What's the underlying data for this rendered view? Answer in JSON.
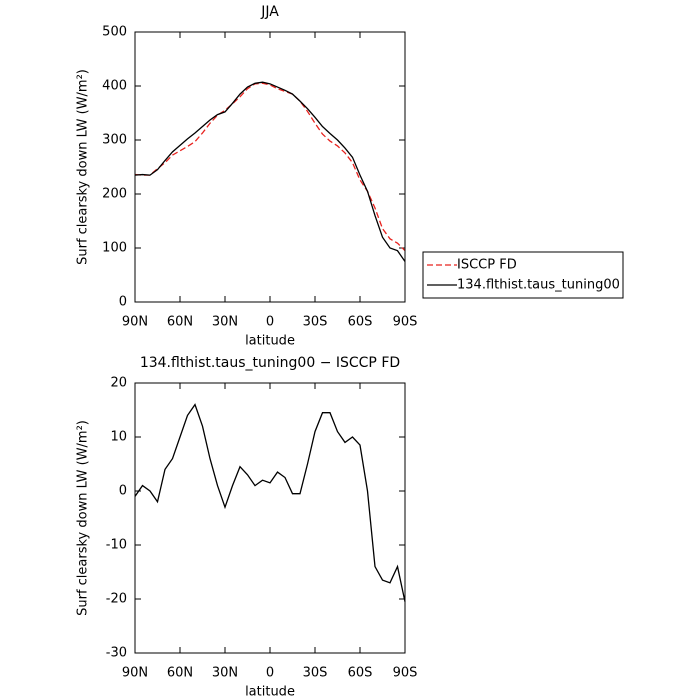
{
  "chart_data": [
    {
      "type": "line",
      "title": "JJA",
      "xlabel": "latitude",
      "ylabel": "Surf clearsky down LW (W/m²)",
      "x": [
        90,
        85,
        80,
        75,
        70,
        65,
        60,
        55,
        50,
        45,
        40,
        35,
        30,
        25,
        20,
        15,
        10,
        5,
        0,
        -5,
        -10,
        -15,
        -20,
        -25,
        -30,
        -35,
        -40,
        -45,
        -50,
        -55,
        -60,
        -65,
        -70,
        -75,
        -80,
        -85,
        -90
      ],
      "series": [
        {
          "name": "ISCCP FD",
          "color": "#e8231f",
          "linestyle": "dashed",
          "values": [
            236,
            235,
            235,
            247,
            258,
            272,
            280,
            288,
            297,
            313,
            331,
            346,
            355,
            367,
            380,
            395,
            404,
            405,
            402,
            395,
            390,
            385,
            372,
            353,
            331,
            311,
            298,
            289,
            276,
            258,
            226,
            205,
            174,
            136,
            117,
            109,
            95
          ]
        },
        {
          "name": "134.flthist.taus_tuning00",
          "color": "#000000",
          "linestyle": "solid",
          "values": [
            235,
            236,
            235,
            245,
            262,
            278,
            290,
            302,
            313,
            325,
            337,
            347,
            352,
            368,
            385,
            398,
            405,
            407,
            404,
            398,
            392,
            385,
            372,
            358,
            342,
            325,
            312,
            300,
            285,
            268,
            235,
            205,
            160,
            120,
            100,
            95,
            75
          ]
        }
      ],
      "xlim": [
        90,
        -90
      ],
      "xticks": [
        {
          "value": 90,
          "label": "90N"
        },
        {
          "value": 60,
          "label": "60N"
        },
        {
          "value": 30,
          "label": "30N"
        },
        0,
        {
          "value": -30,
          "label": "30S"
        },
        {
          "value": -60,
          "label": "60S"
        },
        {
          "value": -90,
          "label": "90S"
        }
      ],
      "ylim": [
        0,
        500
      ],
      "yticks": [
        0,
        100,
        200,
        300,
        400,
        500
      ],
      "legend": "right"
    },
    {
      "type": "line",
      "title": "134.flthist.taus_tuning00 − ISCCP FD",
      "xlabel": "latitude",
      "ylabel": "Surf clearsky down LW (W/m²)",
      "x": [
        90,
        85,
        80,
        75,
        70,
        65,
        60,
        55,
        50,
        45,
        40,
        35,
        30,
        25,
        20,
        15,
        10,
        5,
        0,
        -5,
        -10,
        -15,
        -20,
        -25,
        -30,
        -35,
        -40,
        -45,
        -50,
        -55,
        -60,
        -65,
        -70,
        -75,
        -80,
        -85,
        -90
      ],
      "series": [
        {
          "color": "#000000",
          "linestyle": "solid",
          "values": [
            -1,
            1,
            0,
            -2,
            4,
            6,
            10,
            14,
            16,
            12,
            6,
            1,
            -3,
            1,
            4.5,
            3,
            1,
            2,
            1.5,
            3.5,
            2.5,
            -0.5,
            -0.5,
            5,
            11,
            14.5,
            14.5,
            11,
            9,
            10,
            8.5,
            0,
            -14,
            -16.5,
            -17,
            -14,
            -20.5
          ]
        }
      ],
      "xlim": [
        90,
        -90
      ],
      "xticks": [
        {
          "value": 90,
          "label": "90N"
        },
        {
          "value": 60,
          "label": "60N"
        },
        {
          "value": 30,
          "label": "30N"
        },
        0,
        {
          "value": -30,
          "label": "30S"
        },
        {
          "value": -60,
          "label": "60S"
        },
        {
          "value": -90,
          "label": "90S"
        }
      ],
      "ylim": [
        -30,
        20
      ],
      "yticks": [
        -30,
        -20,
        -10,
        0,
        10,
        20
      ]
    }
  ]
}
